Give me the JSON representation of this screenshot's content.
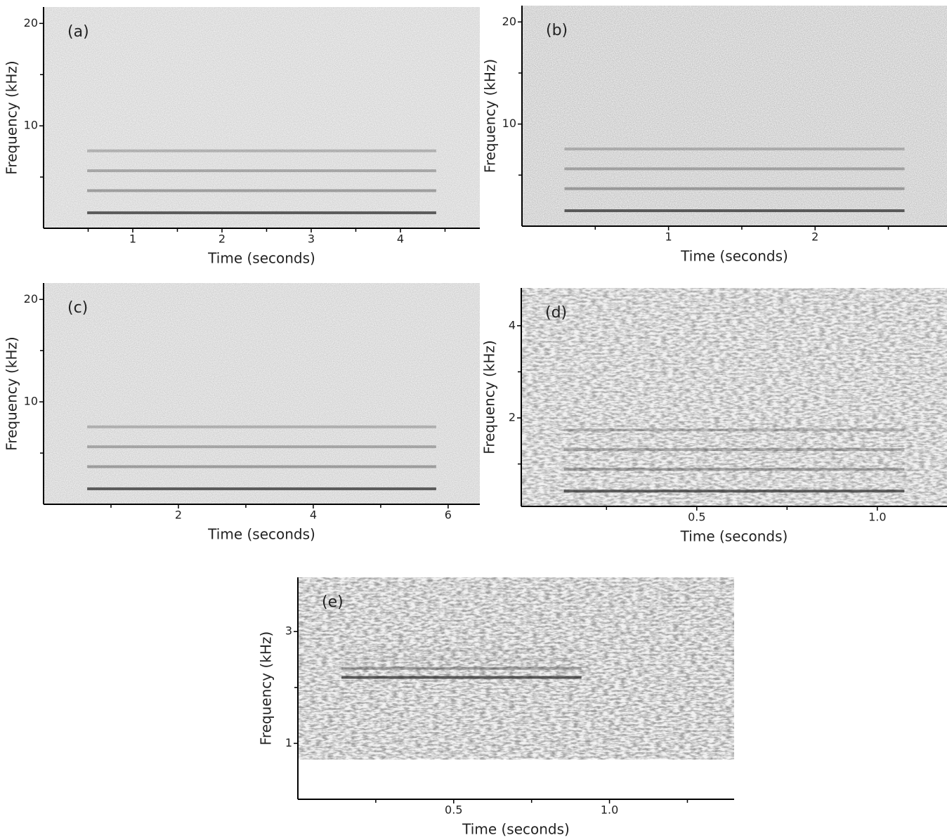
{
  "chart_data": [
    {
      "type": "spectrogram",
      "label": "(a)",
      "xlabel": "Time (seconds)",
      "ylabel": "Frequency (kHz)",
      "xlim": [
        0,
        4.89
      ],
      "ylim": [
        0,
        21.6
      ],
      "xticks": [
        1,
        2,
        3,
        4
      ],
      "xminor": [
        0.5,
        1.5,
        2.5,
        3.5,
        4.5
      ],
      "yticks": [
        10,
        20
      ],
      "yminor": [
        5,
        15
      ]
    },
    {
      "type": "spectrogram",
      "label": "(b)",
      "xlabel": "Time (seconds)",
      "ylabel": "Frequency (kHz)",
      "xlim": [
        0,
        2.9
      ],
      "ylim": [
        0,
        21.6
      ],
      "xticks": [
        1,
        2
      ],
      "xminor": [
        0.5,
        1.5,
        2.5
      ],
      "yticks": [
        10,
        20
      ],
      "yminor": [
        5,
        15
      ]
    },
    {
      "type": "spectrogram",
      "label": "(c)",
      "xlabel": "Time (seconds)",
      "ylabel": "Frequency (kHz)",
      "xlim": [
        0,
        6.47
      ],
      "ylim": [
        0,
        21.6
      ],
      "xticks": [
        2,
        4,
        6
      ],
      "xminor": [
        1,
        3,
        5
      ],
      "yticks": [
        10,
        20
      ],
      "yminor": [
        5,
        15
      ]
    },
    {
      "type": "spectrogram",
      "label": "(d)",
      "xlabel": "Time (seconds)",
      "ylabel": "Frequency (kHz)",
      "xlim": [
        0.014,
        1.193
      ],
      "ylim": [
        0.08,
        4.82
      ],
      "xticks": [
        0.5,
        {
          "value": 1,
          "label": "1.0"
        }
      ],
      "xminor": [
        0.25,
        0.75
      ],
      "yticks": [
        2,
        4
      ],
      "yminor": [
        1,
        3
      ]
    },
    {
      "type": "spectrogram",
      "label": "(e)",
      "xlabel": "Time (seconds)",
      "ylabel": "Frequency (kHz)",
      "xlim": [
        0,
        1.4
      ],
      "ylim": [
        0,
        3.97
      ],
      "xticks": [
        0.5,
        {
          "value": 1,
          "label": "1.0"
        }
      ],
      "xminor": [
        0.25,
        0.75,
        1.25
      ],
      "yticks": [
        1,
        3
      ],
      "yminor": [
        2
      ]
    }
  ]
}
